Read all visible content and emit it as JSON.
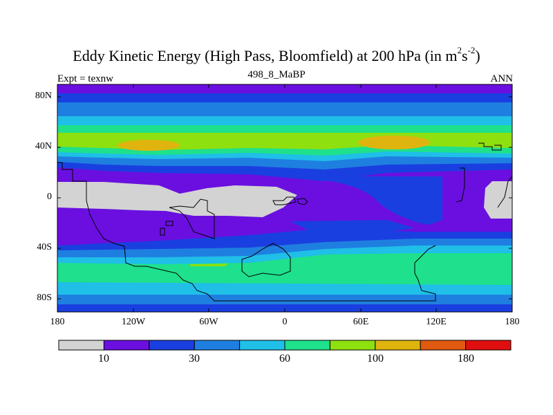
{
  "title_main": "Eddy Kinetic Energy (High Pass, Bloomfield) at 200 hPa (in m",
  "title_sup1": "2",
  "title_mid": "s",
  "title_sup2": "-2",
  "title_end": ")",
  "subtitle": "498_8_MaBP",
  "left_string": "Expt = texnw",
  "right_string": "ANN",
  "y_axis_labels": [
    "80N",
    "40N",
    "0",
    "40S",
    "80S"
  ],
  "x_axis_labels": [
    "180",
    "120W",
    "60W",
    "0",
    "60E",
    "120E",
    "180"
  ],
  "colorbar": {
    "colors": [
      "#d3d3d3",
      "#6a0fe0",
      "#1a3fe0",
      "#1f7fe0",
      "#1fbfe8",
      "#1fe08c",
      "#8ee00f",
      "#e0b40f",
      "#e05a0f",
      "#e00f0f"
    ],
    "labels": [
      "10",
      "30",
      "60",
      "100",
      "180"
    ]
  }
}
